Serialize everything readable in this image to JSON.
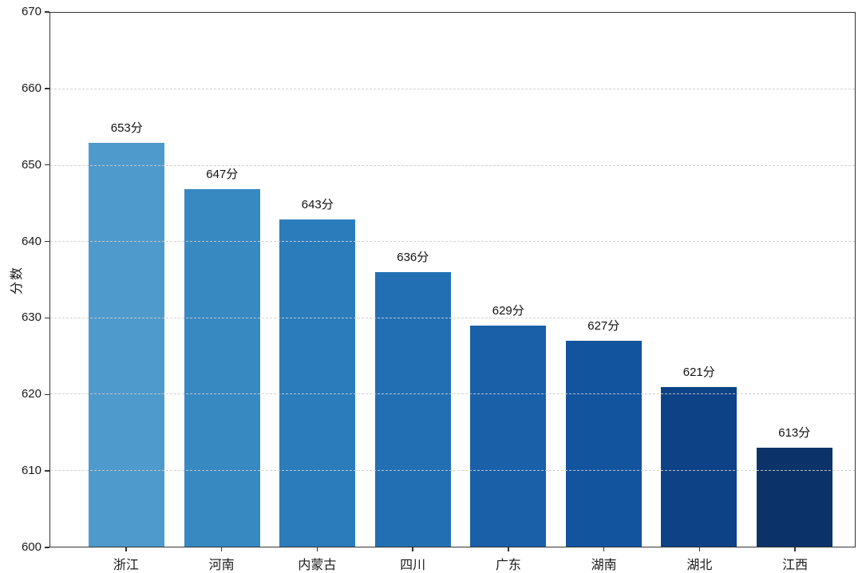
{
  "chart_data": {
    "type": "bar",
    "title": "",
    "xlabel": "",
    "ylabel": "分数",
    "categories": [
      "浙江",
      "河南",
      "内蒙古",
      "四川",
      "广东",
      "湖南",
      "湖北",
      "江西"
    ],
    "values": [
      653,
      647,
      643,
      636,
      629,
      627,
      621,
      613
    ],
    "value_labels": [
      "653分",
      "647分",
      "643分",
      "636分",
      "629分",
      "627分",
      "621分",
      "613分"
    ],
    "unit_suffix": "分",
    "bar_colors": [
      "#4e9acc",
      "#3789c2",
      "#2b7cbb",
      "#2270b3",
      "#1a60a8",
      "#13549e",
      "#0e4286",
      "#0c3369"
    ],
    "ylim": [
      600,
      670
    ],
    "yticks": [
      600,
      610,
      620,
      630,
      640,
      650,
      660,
      670
    ],
    "grid": "horizontal-dashed",
    "legend": "none"
  },
  "style_colors": {
    "axis": "#333333",
    "grid": "#cccccc",
    "text": "#1a1a1a",
    "background": "#ffffff"
  }
}
